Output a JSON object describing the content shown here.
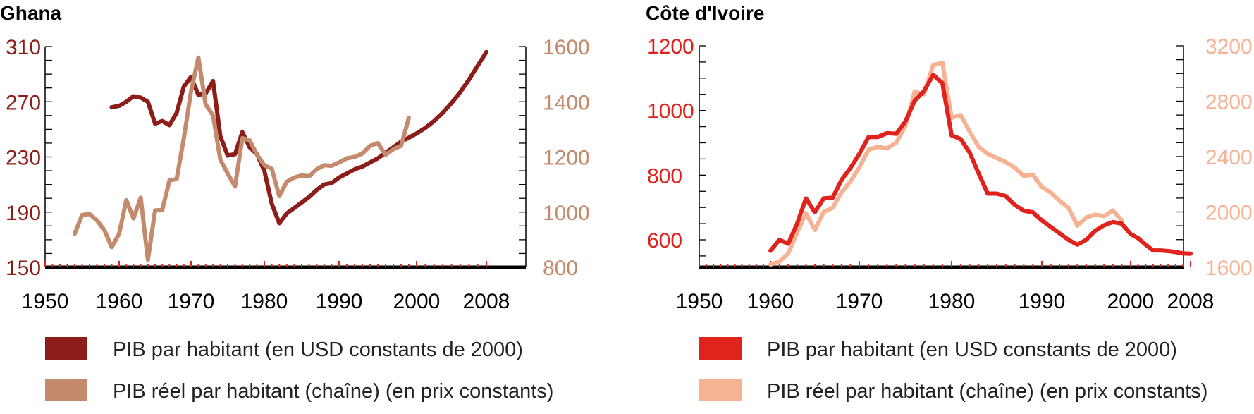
{
  "chart_data": [
    {
      "type": "line",
      "title": "Ghana",
      "xlim": [
        1950,
        2008
      ],
      "x_ticks": [
        "1950",
        "1960",
        "1970",
        "1980",
        "1990",
        "2000",
        "2008"
      ],
      "y_left": {
        "lim": [
          150,
          310
        ],
        "ticks": [
          "150",
          "190",
          "230",
          "270",
          "310"
        ],
        "color": "#8c1d18"
      },
      "y_right": {
        "lim": [
          800,
          1600
        ],
        "ticks": [
          "800",
          "1000",
          "1200",
          "1400",
          "1600"
        ],
        "color": "#c48a6e"
      },
      "series": [
        {
          "name": "PIB par habitant (en USD constants de 2000)",
          "axis": "left",
          "color": "#8c1d18",
          "points": [
            [
              1959,
              266
            ],
            [
              1960,
              267
            ],
            [
              1961,
              270
            ],
            [
              1962,
              274
            ],
            [
              1963,
              273
            ],
            [
              1964,
              270
            ],
            [
              1965,
              254
            ],
            [
              1966,
              256
            ],
            [
              1967,
              253
            ],
            [
              1968,
              262
            ],
            [
              1969,
              281
            ],
            [
              1970,
              288
            ],
            [
              1971,
              275
            ],
            [
              1972,
              276
            ],
            [
              1973,
              285
            ],
            [
              1974,
              245
            ],
            [
              1975,
              231
            ],
            [
              1976,
              232
            ],
            [
              1977,
              248
            ],
            [
              1978,
              237
            ],
            [
              1979,
              232
            ],
            [
              1980,
              220
            ],
            [
              1981,
              196
            ],
            [
              1982,
              182
            ],
            [
              1983,
              189
            ],
            [
              1984,
              193
            ],
            [
              1985,
              197
            ],
            [
              1986,
              201
            ],
            [
              1987,
              206
            ],
            [
              1988,
              210
            ],
            [
              1989,
              211
            ],
            [
              1990,
              215
            ],
            [
              1991,
              218
            ],
            [
              1992,
              221
            ],
            [
              1993,
              223
            ],
            [
              1994,
              226
            ],
            [
              1995,
              229
            ],
            [
              1996,
              233
            ],
            [
              1997,
              237
            ],
            [
              1998,
              241
            ],
            [
              1999,
              244
            ],
            [
              2000,
              247
            ],
            [
              2001,
              251
            ],
            [
              2002,
              256
            ],
            [
              2003,
              262
            ],
            [
              2004,
              269
            ],
            [
              2005,
              277
            ],
            [
              2006,
              286
            ],
            [
              2007,
              296
            ],
            [
              2008,
              306
            ]
          ]
        },
        {
          "name": "PIB réel par habitant (chaîne) (en prix constants)",
          "axis": "right",
          "color": "#c48a6e",
          "points": [
            [
              1954,
              922
            ],
            [
              1955,
              990
            ],
            [
              1956,
              993
            ],
            [
              1957,
              970
            ],
            [
              1958,
              935
            ],
            [
              1959,
              873
            ],
            [
              1960,
              922
            ],
            [
              1961,
              1043
            ],
            [
              1962,
              977
            ],
            [
              1963,
              1052
            ],
            [
              1964,
              827
            ],
            [
              1965,
              1006
            ],
            [
              1966,
              1008
            ],
            [
              1967,
              1115
            ],
            [
              1968,
              1120
            ],
            [
              1969,
              1268
            ],
            [
              1970,
              1438
            ],
            [
              1971,
              1560
            ],
            [
              1972,
              1390
            ],
            [
              1973,
              1350
            ],
            [
              1974,
              1190
            ],
            [
              1975,
              1140
            ],
            [
              1976,
              1093
            ],
            [
              1977,
              1268
            ],
            [
              1978,
              1260
            ],
            [
              1979,
              1208
            ],
            [
              1980,
              1170
            ],
            [
              1981,
              1157
            ],
            [
              1982,
              1058
            ],
            [
              1983,
              1110
            ],
            [
              1984,
              1125
            ],
            [
              1985,
              1133
            ],
            [
              1986,
              1130
            ],
            [
              1987,
              1155
            ],
            [
              1988,
              1170
            ],
            [
              1989,
              1168
            ],
            [
              1990,
              1180
            ],
            [
              1991,
              1195
            ],
            [
              1992,
              1200
            ],
            [
              1993,
              1212
            ],
            [
              1994,
              1240
            ],
            [
              1995,
              1250
            ],
            [
              1996,
              1208
            ],
            [
              1997,
              1228
            ],
            [
              1998,
              1240
            ],
            [
              1999,
              1342
            ]
          ]
        }
      ]
    },
    {
      "type": "line",
      "title": "Côte d'Ivoire",
      "xlim": [
        1950,
        2008
      ],
      "x_ticks": [
        "1950",
        "1960",
        "1970",
        "1980",
        "1990",
        "2000",
        "2008"
      ],
      "y_left": {
        "lim": [
          500,
          1200
        ],
        "ticks": [
          "600",
          "800",
          "1000",
          "1200"
        ],
        "color": "#e0231c"
      },
      "y_right": {
        "lim": [
          1600,
          3200
        ],
        "ticks": [
          "1600",
          "2000",
          "2400",
          "2800",
          "3200"
        ],
        "color": "#f5b394"
      },
      "series": [
        {
          "name": "PIB réel par habitant (chaîne) (en prix constants)",
          "axis": "right",
          "color": "#f5b394",
          "points": [
            [
              1960,
              1620
            ],
            [
              1961,
              1640
            ],
            [
              1962,
              1700
            ],
            [
              1963,
              1850
            ],
            [
              1964,
              1990
            ],
            [
              1965,
              1870
            ],
            [
              1966,
              2000
            ],
            [
              1967,
              2030
            ],
            [
              1968,
              2140
            ],
            [
              1969,
              2220
            ],
            [
              1970,
              2320
            ],
            [
              1971,
              2450
            ],
            [
              1972,
              2470
            ],
            [
              1973,
              2460
            ],
            [
              1974,
              2500
            ],
            [
              1975,
              2620
            ],
            [
              1976,
              2870
            ],
            [
              1977,
              2850
            ],
            [
              1978,
              3060
            ],
            [
              1979,
              3080
            ],
            [
              1980,
              2680
            ],
            [
              1981,
              2700
            ],
            [
              1982,
              2580
            ],
            [
              1983,
              2470
            ],
            [
              1984,
              2420
            ],
            [
              1985,
              2390
            ],
            [
              1986,
              2360
            ],
            [
              1987,
              2320
            ],
            [
              1988,
              2260
            ],
            [
              1989,
              2270
            ],
            [
              1990,
              2180
            ],
            [
              1991,
              2140
            ],
            [
              1992,
              2080
            ],
            [
              1993,
              2030
            ],
            [
              1994,
              1900
            ],
            [
              1995,
              1960
            ],
            [
              1996,
              1980
            ],
            [
              1997,
              1970
            ],
            [
              1998,
              2010
            ],
            [
              1999,
              1940
            ]
          ]
        },
        {
          "name": "PIB par habitant (en USD constants de 2000)",
          "axis": "left",
          "color": "#e0231c",
          "points": [
            [
              1960,
              566
            ],
            [
              1961,
              600
            ],
            [
              1962,
              588
            ],
            [
              1963,
              650
            ],
            [
              1964,
              728
            ],
            [
              1965,
              685
            ],
            [
              1966,
              728
            ],
            [
              1967,
              730
            ],
            [
              1968,
              785
            ],
            [
              1969,
              822
            ],
            [
              1970,
              865
            ],
            [
              1971,
              918
            ],
            [
              1972,
              918
            ],
            [
              1973,
              930
            ],
            [
              1974,
              928
            ],
            [
              1975,
              966
            ],
            [
              1976,
              1030
            ],
            [
              1977,
              1060
            ],
            [
              1978,
              1110
            ],
            [
              1979,
              1085
            ],
            [
              1980,
              923
            ],
            [
              1981,
              912
            ],
            [
              1982,
              870
            ],
            [
              1983,
              805
            ],
            [
              1984,
              743
            ],
            [
              1985,
              743
            ],
            [
              1986,
              735
            ],
            [
              1987,
              708
            ],
            [
              1988,
              690
            ],
            [
              1989,
              685
            ],
            [
              1990,
              660
            ],
            [
              1991,
              640
            ],
            [
              1992,
              620
            ],
            [
              1993,
              600
            ],
            [
              1994,
              585
            ],
            [
              1995,
              600
            ],
            [
              1996,
              628
            ],
            [
              1997,
              645
            ],
            [
              1998,
              655
            ],
            [
              1999,
              650
            ],
            [
              2000,
              618
            ],
            [
              2001,
              605
            ],
            [
              2002,
              585
            ],
            [
              2003,
              567
            ],
            [
              2004,
              567
            ],
            [
              2005,
              565
            ],
            [
              2006,
              562
            ],
            [
              2007,
              558
            ],
            [
              2008,
              557
            ]
          ]
        }
      ]
    }
  ]
}
